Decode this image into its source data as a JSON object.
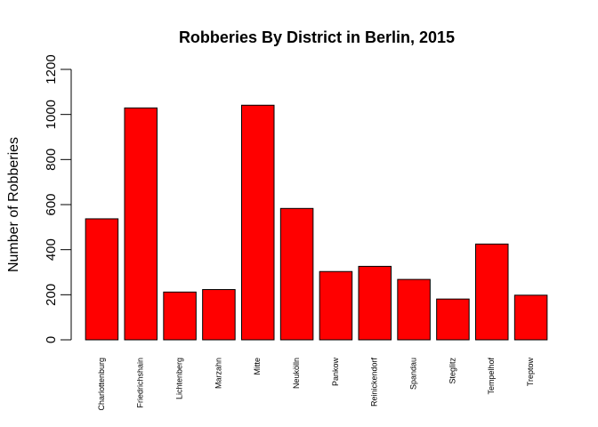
{
  "chart_data": {
    "type": "bar",
    "title": "Robberies By District in Berlin, 2015",
    "xlabel": "",
    "ylabel": "Number of Robberies",
    "ylim": [
      0,
      1200
    ],
    "yticks": [
      0,
      200,
      400,
      600,
      800,
      1000,
      1200
    ],
    "categories": [
      "Charlottenburg",
      "Friedrichshain",
      "Lichtenberg",
      "Marzahn",
      "Mitte",
      "Neukölln",
      "Pankow",
      "Reinickendorf",
      "Spandau",
      "Steglitz",
      "Tempelhof",
      "Treptow"
    ],
    "values": [
      537,
      1029,
      212,
      223,
      1041,
      583,
      303,
      326,
      268,
      181,
      425,
      198
    ],
    "bar_color": "#ff0000",
    "grid": false
  }
}
